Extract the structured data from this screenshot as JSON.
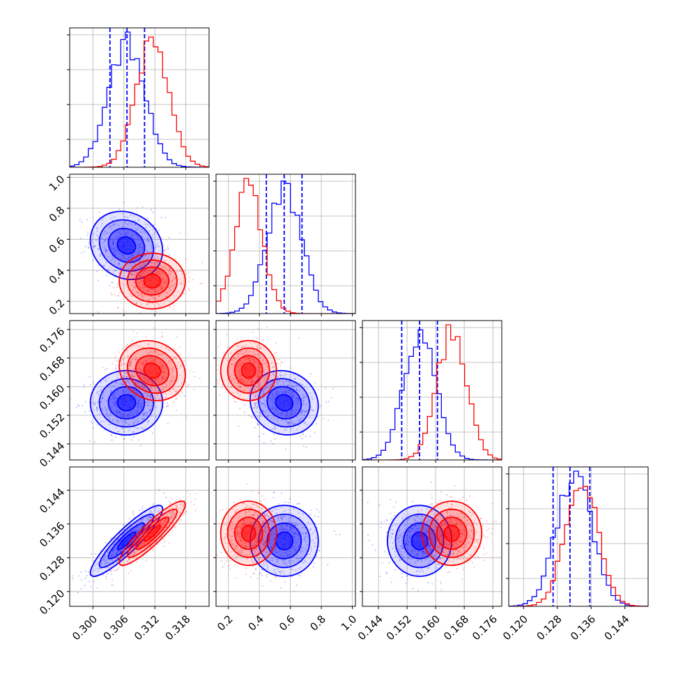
{
  "chart_data": {
    "type": "corner",
    "grid": true,
    "colors": {
      "model_a": "#0000ff",
      "model_b": "#ff0000"
    },
    "parameters": [
      {
        "range": [
          0.2955,
          0.3225
        ],
        "ticks": [
          0.3,
          0.306,
          0.312,
          0.318
        ],
        "tick_labels": [
          "0.300",
          "0.306",
          "0.312",
          "0.318"
        ]
      },
      {
        "range": [
          0.12,
          1.02
        ],
        "ticks": [
          0.2,
          0.4,
          0.6,
          0.8,
          1.0
        ],
        "tick_labels": [
          "0.2",
          "0.4",
          "0.6",
          "0.8",
          "1.0"
        ]
      },
      {
        "range": [
          0.1395,
          0.1785
        ],
        "ticks": [
          0.144,
          0.152,
          0.16,
          0.168,
          0.176
        ],
        "tick_labels": [
          "0.144",
          "0.152",
          "0.160",
          "0.168",
          "0.176"
        ]
      },
      {
        "range": [
          0.1165,
          0.1495
        ],
        "ticks": [
          0.12,
          0.128,
          0.136,
          0.144
        ],
        "tick_labels": [
          "0.120",
          "0.128",
          "0.136",
          "0.144"
        ]
      }
    ],
    "series": [
      {
        "color": "#0000ff",
        "mean": [
          0.3065,
          0.56,
          0.1555,
          0.132
        ],
        "sigma": [
          0.0035,
          0.11,
          0.0045,
          0.0042
        ],
        "corr": {
          "0-1": -0.15,
          "0-2": 0.0,
          "0-3": 0.9,
          "1-2": -0.1,
          "1-3": 0.0,
          "2-3": 0.0
        },
        "quantiles": [
          [
            0.3033,
            0.3066,
            0.31
          ],
          [
            0.445,
            0.56,
            0.675
          ],
          [
            0.1505,
            0.1555,
            0.1605
          ],
          [
            0.127,
            0.131,
            0.1357
          ]
        ]
      },
      {
        "color": "#ff0000",
        "mean": [
          0.3115,
          0.33,
          0.1645,
          0.1338
        ],
        "sigma": [
          0.0032,
          0.09,
          0.0042,
          0.0038
        ],
        "corr": {
          "0-1": 0.0,
          "0-2": -0.15,
          "0-3": 0.9,
          "1-2": 0.0,
          "1-3": 0.0,
          "2-3": 0.0
        },
        "quantiles": []
      }
    ]
  }
}
